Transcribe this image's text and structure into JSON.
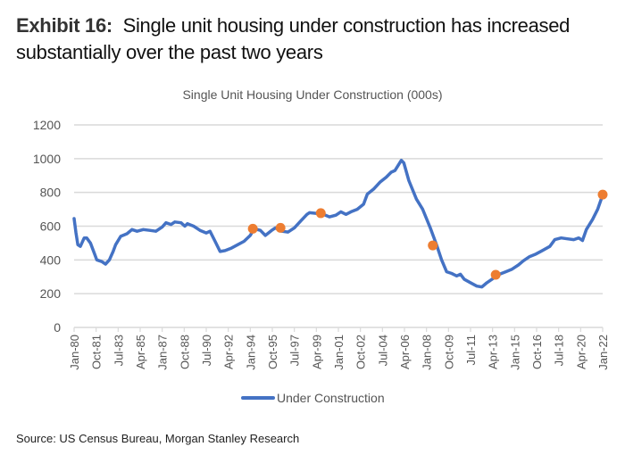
{
  "exhibit": {
    "label": "Exhibit 16:",
    "title": "Single unit housing under construction has increased substantially over the past two years"
  },
  "source": "Source: US Census Bureau, Morgan Stanley Research",
  "colors": {
    "line": "#4472C4",
    "marker": "#ED7D31",
    "grid": "#D9D9D9",
    "axis": "#D9D9D9"
  },
  "chart_data": {
    "type": "line",
    "title": "Single Unit Housing Under Construction (000s)",
    "xlabel": "",
    "ylabel": "",
    "ylim": [
      0,
      1200
    ],
    "xlim": [
      1980.0,
      2022.0
    ],
    "yticks": [
      0,
      200,
      400,
      600,
      800,
      1000,
      1200
    ],
    "xtick_labels": [
      "Jan-80",
      "Oct-81",
      "Jul-83",
      "Apr-85",
      "Jan-87",
      "Oct-88",
      "Jul-90",
      "Apr-92",
      "Jan-94",
      "Oct-95",
      "Jul-97",
      "Apr-99",
      "Jan-01",
      "Oct-02",
      "Jul-04",
      "Apr-06",
      "Jan-08",
      "Oct-09",
      "Jul-11",
      "Apr-13",
      "Jan-15",
      "Oct-16",
      "Jul-18",
      "Apr-20",
      "Jan-22"
    ],
    "grid": true,
    "legend": "bottom",
    "series": [
      {
        "name": "Under Construction",
        "x": [
          1980.0,
          1980.15,
          1980.3,
          1980.5,
          1980.8,
          1981.0,
          1981.3,
          1981.6,
          1981.8,
          1982.2,
          1982.5,
          1982.8,
          1983.1,
          1983.3,
          1983.7,
          1984.2,
          1984.6,
          1985.0,
          1985.5,
          1986.0,
          1986.5,
          1987.0,
          1987.3,
          1987.7,
          1988.0,
          1988.5,
          1988.8,
          1989.0,
          1989.5,
          1990.0,
          1990.5,
          1990.8,
          1991.2,
          1991.6,
          1992.0,
          1992.5,
          1993.0,
          1993.5,
          1994.0,
          1994.3,
          1994.8,
          1995.2,
          1995.7,
          1996.0,
          1996.5,
          1997.0,
          1997.5,
          1998.0,
          1998.5,
          1998.7,
          1999.3,
          1999.8,
          2000.3,
          2000.8,
          2001.2,
          2001.6,
          2002.0,
          2002.5,
          2003.0,
          2003.3,
          2003.8,
          2004.3,
          2004.8,
          2005.2,
          2005.5,
          2006.0,
          2006.2,
          2006.6,
          2007.2,
          2007.7,
          2008.3,
          2008.8,
          2009.2,
          2009.6,
          2010.0,
          2010.4,
          2010.7,
          2011.0,
          2011.5,
          2012.0,
          2012.4,
          2012.8,
          2013.3,
          2013.8,
          2014.3,
          2014.8,
          2015.3,
          2015.7,
          2016.2,
          2016.7,
          2017.2,
          2017.8,
          2018.2,
          2018.7,
          2019.2,
          2019.7,
          2020.1,
          2020.4,
          2020.7,
          2021.2,
          2021.6,
          2022.0
        ],
        "values": [
          645,
          560,
          490,
          480,
          530,
          530,
          500,
          440,
          400,
          390,
          375,
          400,
          450,
          490,
          540,
          555,
          580,
          570,
          580,
          575,
          570,
          595,
          620,
          610,
          625,
          620,
          600,
          615,
          600,
          575,
          560,
          570,
          510,
          450,
          455,
          470,
          490,
          510,
          545,
          585,
          575,
          545,
          575,
          590,
          570,
          565,
          590,
          630,
          670,
          680,
          675,
          670,
          655,
          665,
          685,
          670,
          685,
          700,
          730,
          790,
          820,
          860,
          890,
          920,
          930,
          990,
          975,
          870,
          760,
          700,
          590,
          490,
          400,
          330,
          320,
          305,
          315,
          285,
          265,
          245,
          240,
          265,
          290,
          315,
          330,
          345,
          370,
          395,
          420,
          435,
          455,
          480,
          520,
          530,
          525,
          520,
          530,
          515,
          580,
          640,
          700,
          785
        ]
      }
    ],
    "markers": [
      {
        "x": 1994.2,
        "y": 585
      },
      {
        "x": 1996.4,
        "y": 590
      },
      {
        "x": 1999.6,
        "y": 677
      },
      {
        "x": 2008.5,
        "y": 486
      },
      {
        "x": 2013.5,
        "y": 312
      },
      {
        "x": 2022.0,
        "y": 787
      }
    ]
  }
}
